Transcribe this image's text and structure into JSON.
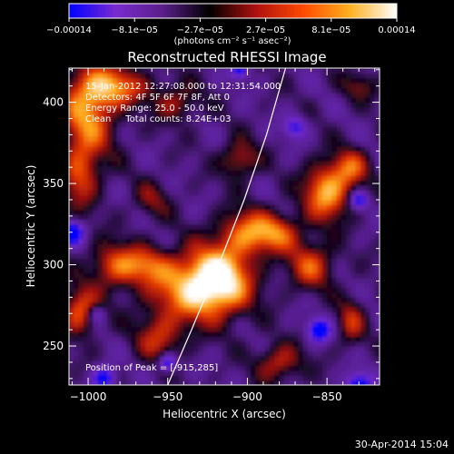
{
  "chart_data": {
    "type": "heatmap",
    "title": "Reconstructed RHESSI Image",
    "xlabel": "Heliocentric X (arcsec)",
    "ylabel": "Heliocentric Y (arcsec)",
    "xlim": [
      -1012,
      -817
    ],
    "ylim": [
      226,
      421
    ],
    "xticks": [
      {
        "value": -1000,
        "label": "−1000"
      },
      {
        "value": -950,
        "label": "−950"
      },
      {
        "value": -900,
        "label": "−900"
      },
      {
        "value": -850,
        "label": "−850"
      }
    ],
    "yticks": [
      {
        "value": 250,
        "label": "250"
      },
      {
        "value": 300,
        "label": "300"
      },
      {
        "value": 350,
        "label": "350"
      },
      {
        "value": 400,
        "label": "400"
      }
    ],
    "colorbar": {
      "range": [
        -0.00014,
        0.00014
      ],
      "ticks": [
        "−0.00014",
        "−8.1e−05",
        "−2.7e−05",
        "2.7e−05",
        "8.1e−05",
        "0.00014"
      ],
      "units": "(photons cm⁻² s⁻¹ asec⁻²)",
      "colors": [
        "#0000ff",
        "#7a2bd0",
        "#5a1e8a",
        "#000000",
        "#b01010",
        "#ff4a00",
        "#ffb020",
        "#ffffff"
      ]
    },
    "annotations": [
      "15-Jan-2012 12:27:08.000 to 12:31:54.000",
      "Detectors: 4F 5F 6F 7F 8F, Att 0",
      "Energy Range: 25.0 - 50.0 keV",
      "Clean     Total counts: 8.24E+03"
    ],
    "peak_label": "Position of Peak = [-915,285]",
    "peak": {
      "x": -915,
      "y": 285
    },
    "limb_curve": [
      [
        -950,
        226
      ],
      [
        -935,
        260
      ],
      [
        -918,
        300
      ],
      [
        -902,
        340
      ],
      [
        -888,
        380
      ],
      [
        -876,
        421
      ]
    ],
    "emission_blobs": [
      {
        "x": -918,
        "y": 292,
        "sx": 14,
        "sy": 14,
        "a": 1.0
      },
      {
        "x": -935,
        "y": 285,
        "sx": 20,
        "sy": 14,
        "a": 0.8
      },
      {
        "x": -1000,
        "y": 395,
        "sx": 12,
        "sy": 20,
        "a": 0.85
      },
      {
        "x": -982,
        "y": 410,
        "sx": 14,
        "sy": 8,
        "a": 0.7
      },
      {
        "x": -1005,
        "y": 355,
        "sx": 8,
        "sy": 14,
        "a": 0.6
      },
      {
        "x": -985,
        "y": 300,
        "sx": 10,
        "sy": 10,
        "a": 0.55
      },
      {
        "x": -965,
        "y": 300,
        "sx": 12,
        "sy": 8,
        "a": 0.6
      },
      {
        "x": -1005,
        "y": 272,
        "sx": 8,
        "sy": 10,
        "a": 0.75
      },
      {
        "x": -955,
        "y": 255,
        "sx": 10,
        "sy": 10,
        "a": 0.55
      },
      {
        "x": -900,
        "y": 320,
        "sx": 12,
        "sy": 10,
        "a": 0.75
      },
      {
        "x": -880,
        "y": 320,
        "sx": 10,
        "sy": 8,
        "a": 0.6
      },
      {
        "x": -860,
        "y": 300,
        "sx": 10,
        "sy": 10,
        "a": 0.65
      },
      {
        "x": -850,
        "y": 345,
        "sx": 10,
        "sy": 12,
        "a": 0.95
      },
      {
        "x": -835,
        "y": 360,
        "sx": 8,
        "sy": 8,
        "a": 0.6
      },
      {
        "x": -905,
        "y": 365,
        "sx": 8,
        "sy": 8,
        "a": 0.55
      },
      {
        "x": -880,
        "y": 240,
        "sx": 10,
        "sy": 8,
        "a": 0.55
      },
      {
        "x": -945,
        "y": 400,
        "sx": 10,
        "sy": 8,
        "a": 0.45
      },
      {
        "x": -835,
        "y": 265,
        "sx": 6,
        "sy": 10,
        "a": 0.5
      },
      {
        "x": -830,
        "y": 410,
        "sx": 8,
        "sy": 6,
        "a": 0.35
      },
      {
        "x": -960,
        "y": 340,
        "sx": 8,
        "sy": 8,
        "a": 0.35
      }
    ],
    "negative_blobs": [
      {
        "x": -855,
        "y": 260,
        "sx": 5,
        "sy": 5,
        "a": 0.9
      },
      {
        "x": -830,
        "y": 225,
        "sx": 6,
        "sy": 6,
        "a": 0.9
      },
      {
        "x": -990,
        "y": 230,
        "sx": 5,
        "sy": 5,
        "a": 0.8
      },
      {
        "x": -1010,
        "y": 320,
        "sx": 5,
        "sy": 5,
        "a": 0.9
      },
      {
        "x": -950,
        "y": 240,
        "sx": 4,
        "sy": 4,
        "a": 0.8
      },
      {
        "x": -870,
        "y": 385,
        "sx": 5,
        "sy": 5,
        "a": 0.6
      },
      {
        "x": -905,
        "y": 420,
        "sx": 4,
        "sy": 4,
        "a": 0.7
      },
      {
        "x": -830,
        "y": 340,
        "sx": 4,
        "sy": 4,
        "a": 0.7
      },
      {
        "x": -995,
        "y": 270,
        "sx": 4,
        "sy": 4,
        "a": 0.5
      }
    ]
  },
  "footer": {
    "date": "30-Apr-2014 15:04"
  }
}
